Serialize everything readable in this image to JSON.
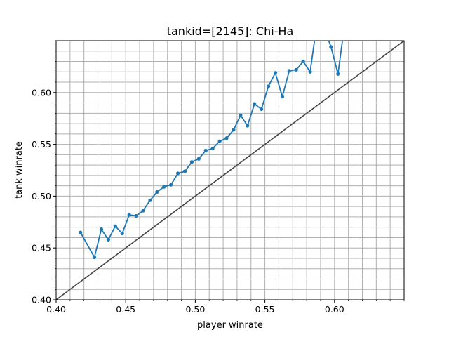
{
  "chart_data": {
    "type": "line",
    "title": "tankid=[2145]: Chi-Ha",
    "xlabel": "player winrate",
    "ylabel": "tank winrate",
    "xlim": [
      0.4,
      0.65
    ],
    "ylim": [
      0.4,
      0.65
    ],
    "grid": true,
    "minor_grid_step": 0.01,
    "x_ticks": [
      0.4,
      0.45,
      0.5,
      0.55,
      0.6
    ],
    "y_ticks": [
      0.4,
      0.45,
      0.5,
      0.55,
      0.6
    ],
    "tick_labels_x": [
      "0.40",
      "0.45",
      "0.50",
      "0.55",
      "0.60"
    ],
    "tick_labels_y": [
      "0.40",
      "0.45",
      "0.50",
      "0.55",
      "0.60"
    ],
    "series": [
      {
        "name": "winrate",
        "color": "#1f77b4",
        "x": [
          0.4175,
          0.4275,
          0.4325,
          0.4375,
          0.4425,
          0.4475,
          0.4525,
          0.4575,
          0.4625,
          0.4675,
          0.4725,
          0.4775,
          0.4825,
          0.4875,
          0.4925,
          0.4975,
          0.5025,
          0.5075,
          0.5125,
          0.5175,
          0.5225,
          0.5275,
          0.5325,
          0.5375,
          0.5425,
          0.5475,
          0.5525,
          0.5575,
          0.5625,
          0.5675,
          0.5725,
          0.5775,
          0.5825,
          0.5875,
          0.5925,
          0.5975,
          0.6025,
          0.6075
        ],
        "y": [
          0.465,
          0.441,
          0.468,
          0.458,
          0.471,
          0.464,
          0.482,
          0.481,
          0.486,
          0.496,
          0.504,
          0.509,
          0.511,
          0.522,
          0.524,
          0.533,
          0.536,
          0.544,
          0.546,
          0.553,
          0.556,
          0.564,
          0.578,
          0.568,
          0.589,
          0.584,
          0.606,
          0.619,
          0.596,
          0.621,
          0.622,
          0.63,
          0.62,
          0.668,
          0.662,
          0.644,
          0.618,
          0.668
        ]
      }
    ],
    "reference_line": {
      "name": "y=x",
      "color": "#444444",
      "from": [
        0.4,
        0.4
      ],
      "to": [
        0.65,
        0.65
      ]
    }
  }
}
